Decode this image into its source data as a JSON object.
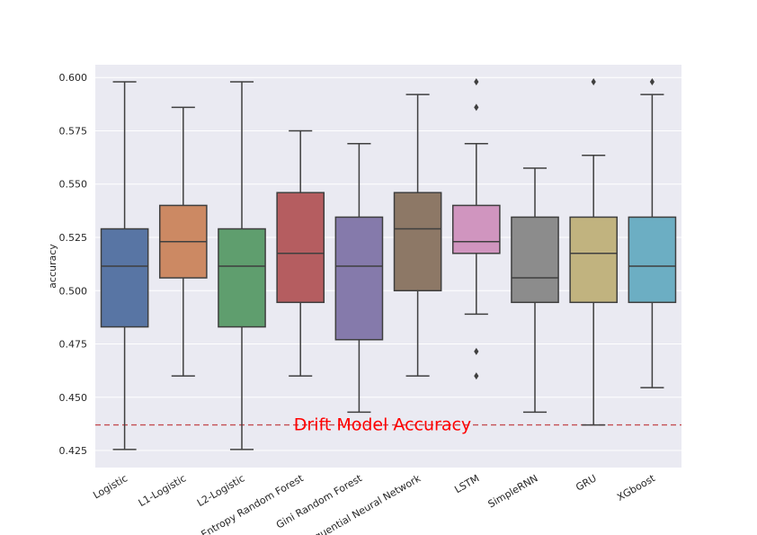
{
  "chart_data": {
    "type": "box",
    "title": "",
    "xlabel": "",
    "ylabel": "accuracy",
    "ylim": [
      0.417,
      0.606
    ],
    "yticks": [
      0.425,
      0.45,
      0.475,
      0.5,
      0.525,
      0.55,
      0.575,
      0.6
    ],
    "ytick_labels": [
      "0.425",
      "0.450",
      "0.475",
      "0.500",
      "0.525",
      "0.550",
      "0.575",
      "0.600"
    ],
    "grid": true,
    "categories": [
      "Logistic",
      "L1-Logistic",
      "L2-Logistic",
      "Entropy Random Forest",
      "Gini Random Forest",
      "Sequential Neural Network",
      "LSTM",
      "SimpleRNN",
      "GRU",
      "XGboost"
    ],
    "boxes": [
      {
        "whisker_low": 0.4255,
        "q1": 0.483,
        "median": 0.5115,
        "q3": 0.529,
        "whisker_high": 0.598,
        "outliers": [],
        "color": "#5875a4"
      },
      {
        "whisker_low": 0.46,
        "q1": 0.506,
        "median": 0.523,
        "q3": 0.54,
        "whisker_high": 0.586,
        "outliers": [],
        "color": "#cc8963"
      },
      {
        "whisker_low": 0.4255,
        "q1": 0.483,
        "median": 0.5115,
        "q3": 0.529,
        "whisker_high": 0.598,
        "outliers": [],
        "color": "#5f9e6e"
      },
      {
        "whisker_low": 0.46,
        "q1": 0.4945,
        "median": 0.5175,
        "q3": 0.546,
        "whisker_high": 0.575,
        "outliers": [],
        "color": "#b55d60"
      },
      {
        "whisker_low": 0.443,
        "q1": 0.477,
        "median": 0.5115,
        "q3": 0.5345,
        "whisker_high": 0.569,
        "outliers": [],
        "color": "#857aab"
      },
      {
        "whisker_low": 0.46,
        "q1": 0.5,
        "median": 0.529,
        "q3": 0.546,
        "whisker_high": 0.592,
        "outliers": [],
        "color": "#8d7866"
      },
      {
        "whisker_low": 0.489,
        "q1": 0.5175,
        "median": 0.523,
        "q3": 0.54,
        "whisker_high": 0.569,
        "outliers": [
          0.598,
          0.586,
          0.4715,
          0.46
        ],
        "color": "#d095bf"
      },
      {
        "whisker_low": 0.443,
        "q1": 0.4945,
        "median": 0.506,
        "q3": 0.5345,
        "whisker_high": 0.5575,
        "outliers": [],
        "color": "#8c8c8c"
      },
      {
        "whisker_low": 0.437,
        "q1": 0.4945,
        "median": 0.5175,
        "q3": 0.5345,
        "whisker_high": 0.5635,
        "outliers": [
          0.598
        ],
        "color": "#c1b37f"
      },
      {
        "whisker_low": 0.4545,
        "q1": 0.4945,
        "median": 0.5115,
        "q3": 0.5345,
        "whisker_high": 0.592,
        "outliers": [
          0.598
        ],
        "color": "#6caec3"
      }
    ],
    "reference_line": {
      "y": 0.437,
      "style": "dashed",
      "color": "#c44e52"
    },
    "annotations": [
      {
        "text": "Drift Model Accuracy",
        "x_category": 4.4,
        "y": 0.437,
        "color": "#ff0000"
      }
    ]
  }
}
